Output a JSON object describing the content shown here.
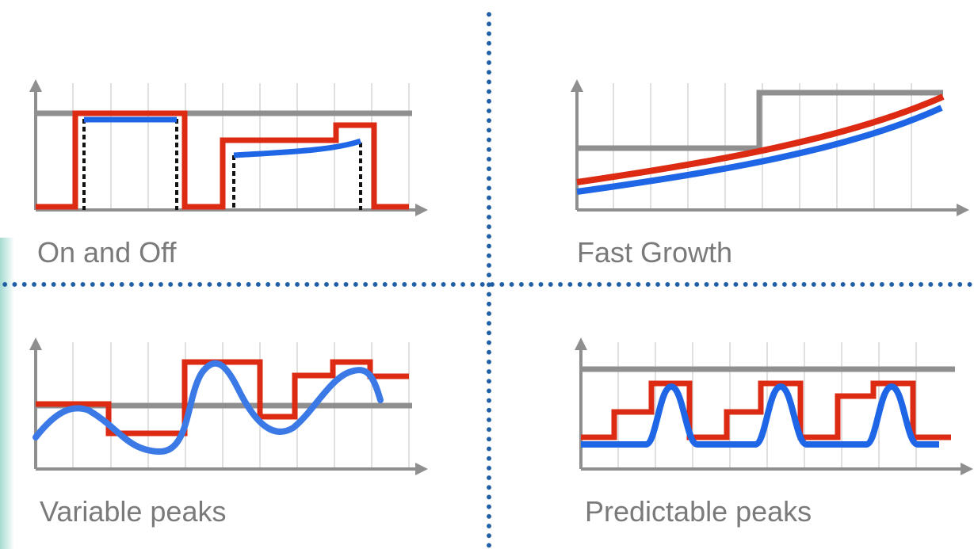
{
  "colors": {
    "capacity_line": "#8f8f8f",
    "provisioned": "#dd2a12",
    "demand": "#1f66e6",
    "divider": "#1f5fa5",
    "caption_text": "#7a7a7a",
    "grid": "#d6d6d6"
  },
  "panels": [
    {
      "id": "on-and-off",
      "caption": "On and Off"
    },
    {
      "id": "fast-growth",
      "caption": "Fast Growth"
    },
    {
      "id": "variable-peaks",
      "caption": "Variable peaks"
    },
    {
      "id": "predictable-peaks",
      "caption": "Predictable peaks"
    }
  ]
}
